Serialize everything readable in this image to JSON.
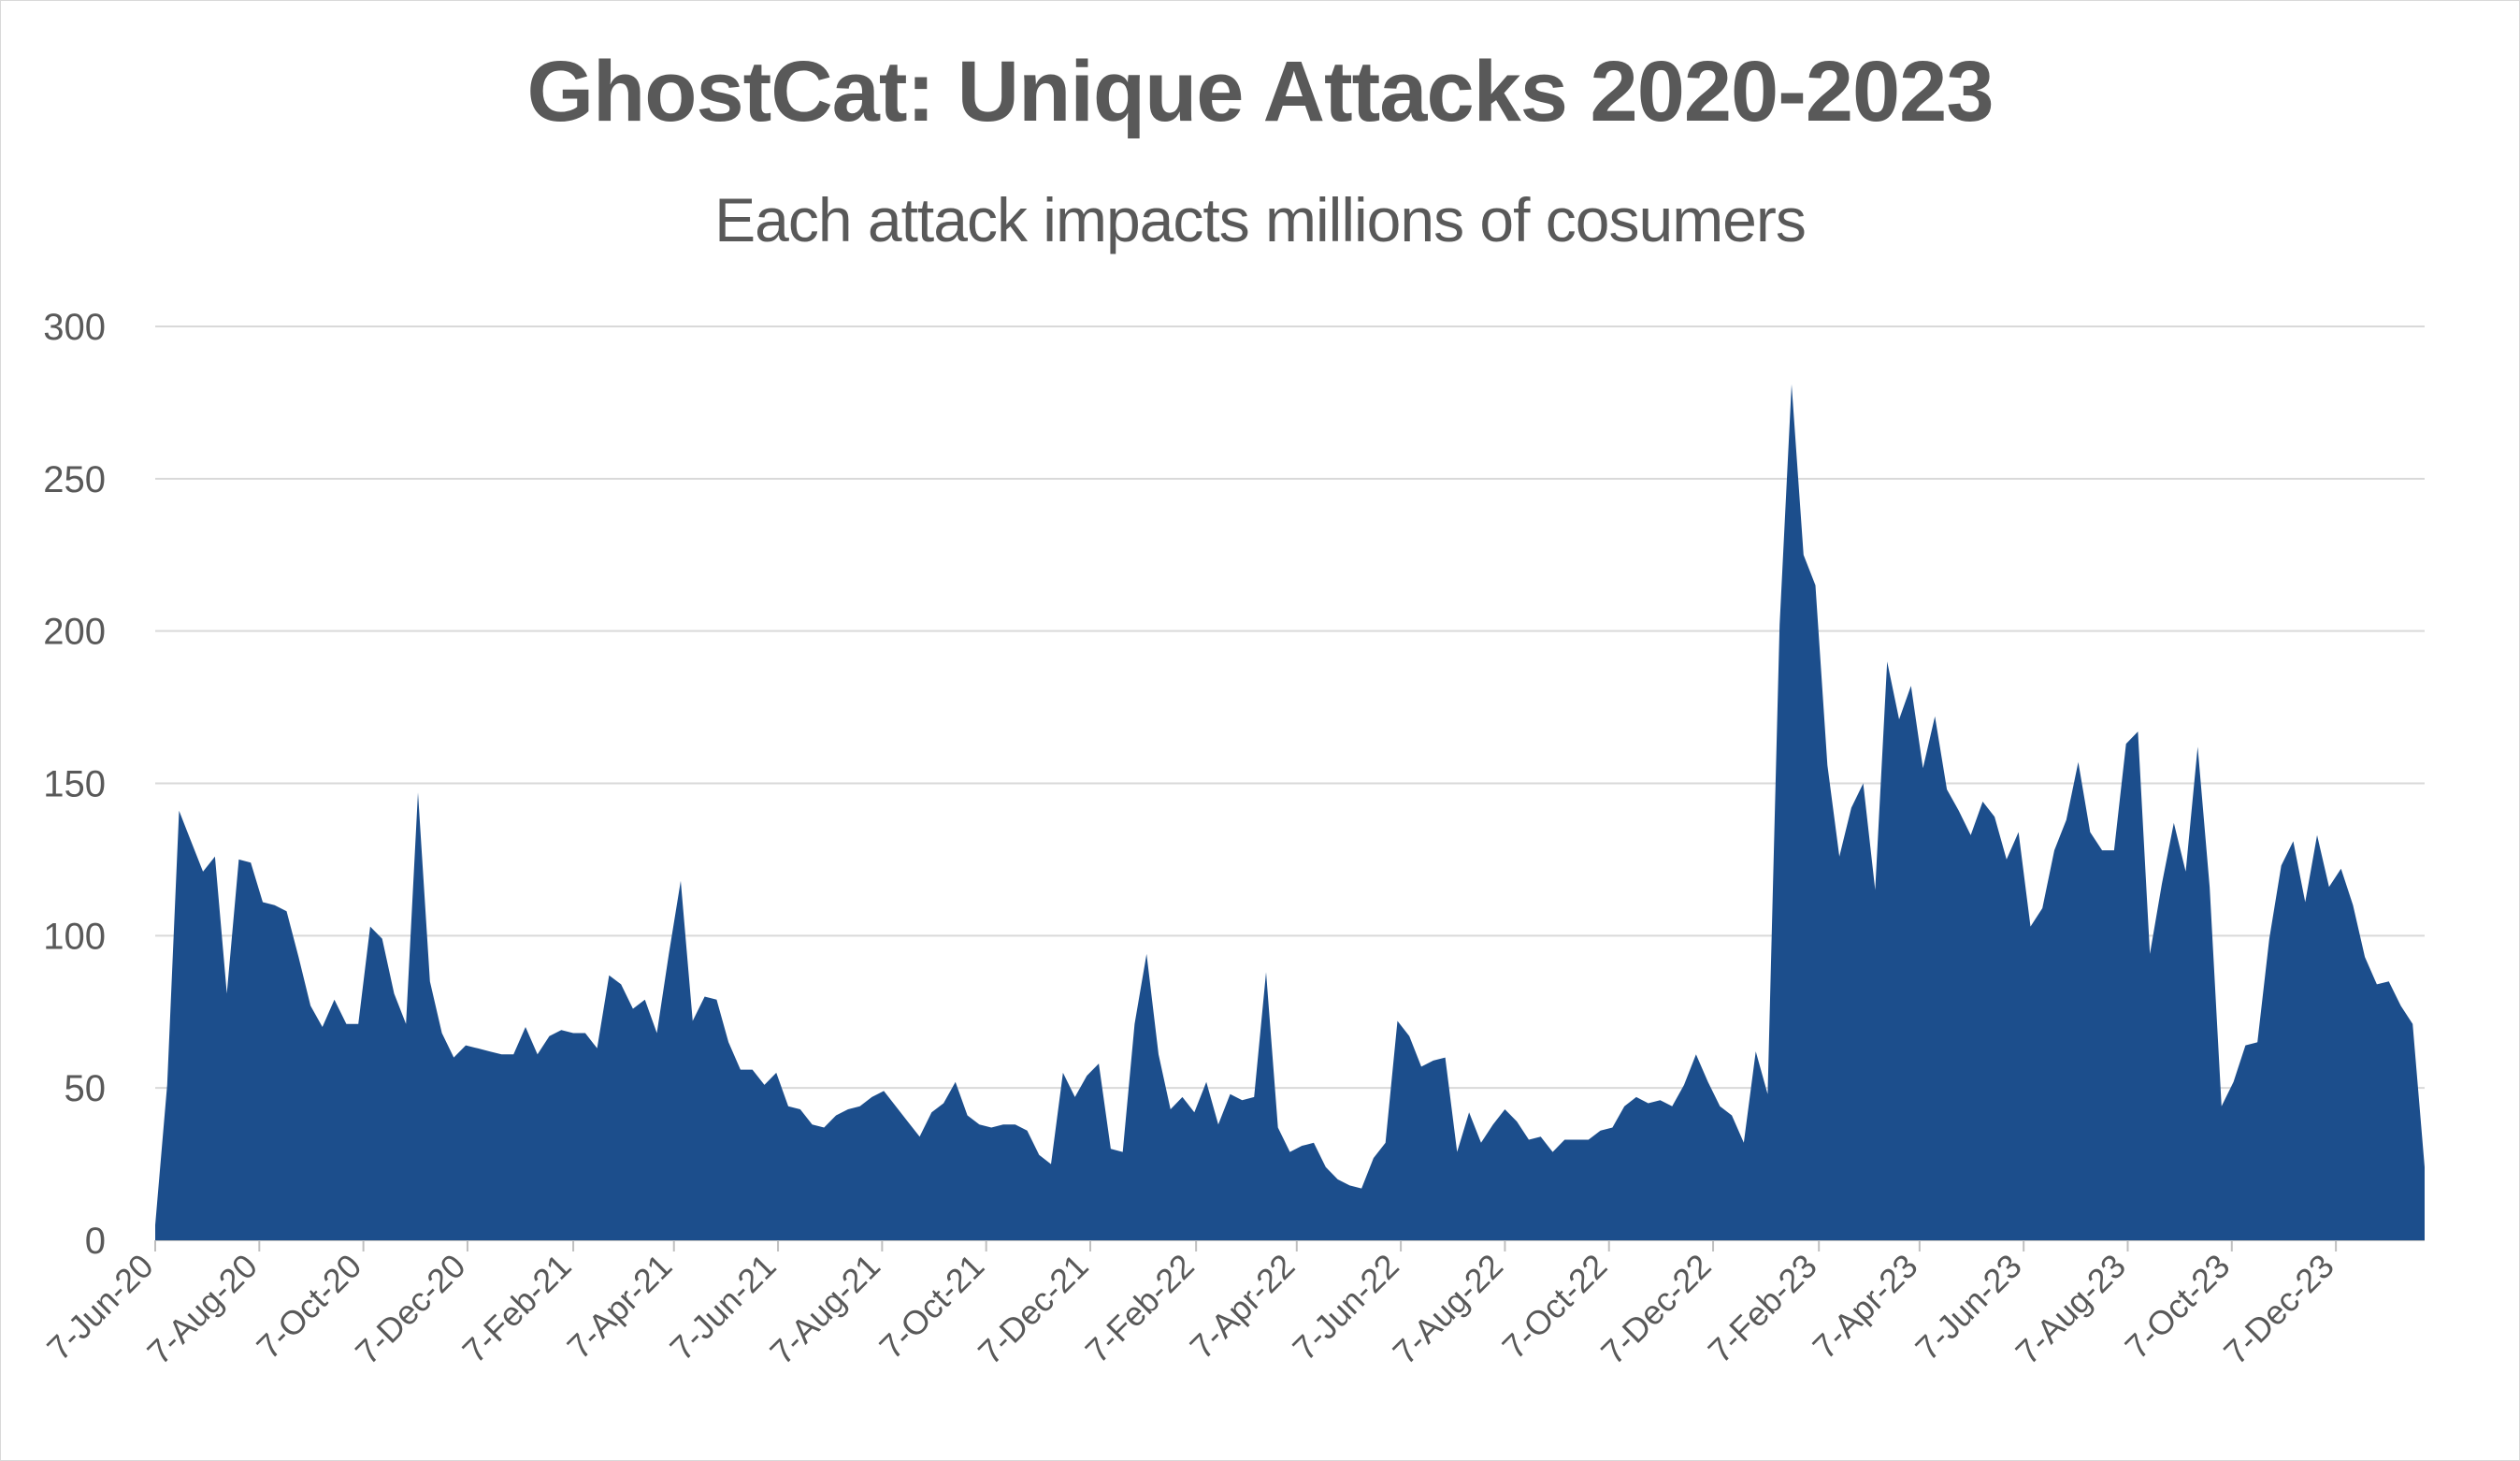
{
  "chart_data": {
    "type": "area",
    "title": "GhostCat: Unique Attacks 2020-2023",
    "subtitle": "Each attack impacts millions of cosumers",
    "xlabel": "",
    "ylabel": "",
    "ylim": [
      0,
      300
    ],
    "yticks": [
      "0",
      "50",
      "100",
      "150",
      "200",
      "250",
      "300"
    ],
    "xlim": [
      "2020-06-07",
      "2024-01-28"
    ],
    "xticks": [
      {
        "date": "2020-06-07",
        "label": "7-Jun-20"
      },
      {
        "date": "2020-08-07",
        "label": "7-Aug-20"
      },
      {
        "date": "2020-10-07",
        "label": "7-Oct-20"
      },
      {
        "date": "2020-12-07",
        "label": "7-Dec-20"
      },
      {
        "date": "2021-02-07",
        "label": "7-Feb-21"
      },
      {
        "date": "2021-04-07",
        "label": "7-Apr-21"
      },
      {
        "date": "2021-06-07",
        "label": "7-Jun-21"
      },
      {
        "date": "2021-08-07",
        "label": "7-Aug-21"
      },
      {
        "date": "2021-10-07",
        "label": "7-Oct-21"
      },
      {
        "date": "2021-12-07",
        "label": "7-Dec-21"
      },
      {
        "date": "2022-02-07",
        "label": "7-Feb-22"
      },
      {
        "date": "2022-04-07",
        "label": "7-Apr-22"
      },
      {
        "date": "2022-06-07",
        "label": "7-Jun-22"
      },
      {
        "date": "2022-08-07",
        "label": "7-Aug-22"
      },
      {
        "date": "2022-10-07",
        "label": "7-Oct-22"
      },
      {
        "date": "2022-12-07",
        "label": "7-Dec-22"
      },
      {
        "date": "2023-02-07",
        "label": "7-Feb-23"
      },
      {
        "date": "2023-04-07",
        "label": "7-Apr-23"
      },
      {
        "date": "2023-06-07",
        "label": "7-Jun-23"
      },
      {
        "date": "2023-08-07",
        "label": "7-Aug-23"
      },
      {
        "date": "2023-10-07",
        "label": "7-Oct-23"
      },
      {
        "date": "2023-12-07",
        "label": "7-Dec-23"
      }
    ],
    "grid": true,
    "legend": "none",
    "color": "#1c4e8c",
    "series": [
      {
        "x": [
          "2020-06-07",
          "2020-06-14",
          "2020-06-21",
          "2020-06-28",
          "2020-07-05",
          "2020-07-12",
          "2020-07-19",
          "2020-07-26",
          "2020-08-02",
          "2020-08-09",
          "2020-08-16",
          "2020-08-23",
          "2020-08-30",
          "2020-09-06",
          "2020-09-13",
          "2020-09-20",
          "2020-09-27",
          "2020-10-04",
          "2020-10-11",
          "2020-10-18",
          "2020-10-25",
          "2020-11-01",
          "2020-11-08",
          "2020-11-15",
          "2020-11-22",
          "2020-11-29",
          "2020-12-06",
          "2020-12-13",
          "2020-12-20",
          "2020-12-27",
          "2021-01-03",
          "2021-01-10",
          "2021-01-17",
          "2021-01-24",
          "2021-01-31",
          "2021-02-07",
          "2021-02-14",
          "2021-02-21",
          "2021-02-28",
          "2021-03-07",
          "2021-03-14",
          "2021-03-21",
          "2021-03-28",
          "2021-04-04",
          "2021-04-11",
          "2021-04-18",
          "2021-04-25",
          "2021-05-02",
          "2021-05-09",
          "2021-05-16",
          "2021-05-23",
          "2021-05-30",
          "2021-06-06",
          "2021-06-13",
          "2021-06-20",
          "2021-06-27",
          "2021-07-04",
          "2021-07-11",
          "2021-07-18",
          "2021-07-25",
          "2021-08-01",
          "2021-08-08",
          "2021-08-15",
          "2021-08-22",
          "2021-08-29",
          "2021-09-05",
          "2021-09-12",
          "2021-09-19",
          "2021-09-26",
          "2021-10-03",
          "2021-10-10",
          "2021-10-17",
          "2021-10-24",
          "2021-10-31",
          "2021-11-07",
          "2021-11-14",
          "2021-11-21",
          "2021-11-28",
          "2021-12-05",
          "2021-12-12",
          "2021-12-19",
          "2021-12-26",
          "2022-01-02",
          "2022-01-09",
          "2022-01-16",
          "2022-01-23",
          "2022-01-30",
          "2022-02-06",
          "2022-02-13",
          "2022-02-20",
          "2022-02-27",
          "2022-03-06",
          "2022-03-13",
          "2022-03-20",
          "2022-03-27",
          "2022-04-03",
          "2022-04-10",
          "2022-04-17",
          "2022-04-24",
          "2022-05-01",
          "2022-05-08",
          "2022-05-15",
          "2022-05-22",
          "2022-05-29",
          "2022-06-05",
          "2022-06-12",
          "2022-06-19",
          "2022-06-26",
          "2022-07-03",
          "2022-07-10",
          "2022-07-17",
          "2022-07-24",
          "2022-07-31",
          "2022-08-07",
          "2022-08-14",
          "2022-08-21",
          "2022-08-28",
          "2022-09-04",
          "2022-09-11",
          "2022-09-18",
          "2022-09-25",
          "2022-10-02",
          "2022-10-09",
          "2022-10-16",
          "2022-10-23",
          "2022-10-30",
          "2022-11-06",
          "2022-11-13",
          "2022-11-20",
          "2022-11-27",
          "2022-12-04",
          "2022-12-11",
          "2022-12-18",
          "2022-12-25",
          "2023-01-01",
          "2023-01-08",
          "2023-01-15",
          "2023-01-22",
          "2023-01-29",
          "2023-02-05",
          "2023-02-12",
          "2023-02-19",
          "2023-02-26",
          "2023-03-05",
          "2023-03-12",
          "2023-03-19",
          "2023-03-26",
          "2023-04-02",
          "2023-04-09",
          "2023-04-16",
          "2023-04-23",
          "2023-04-30",
          "2023-05-07",
          "2023-05-14",
          "2023-05-21",
          "2023-05-28",
          "2023-06-04",
          "2023-06-11",
          "2023-06-18",
          "2023-06-25",
          "2023-07-02",
          "2023-07-09",
          "2023-07-16",
          "2023-07-23",
          "2023-07-30",
          "2023-08-06",
          "2023-08-13",
          "2023-08-20",
          "2023-08-27",
          "2023-09-03",
          "2023-09-10",
          "2023-09-17",
          "2023-09-24",
          "2023-10-01",
          "2023-10-08",
          "2023-10-15",
          "2023-10-22",
          "2023-10-29",
          "2023-11-05",
          "2023-11-12",
          "2023-11-19",
          "2023-11-26",
          "2023-12-03",
          "2023-12-10",
          "2023-12-17",
          "2023-12-24",
          "2023-12-31",
          "2024-01-07",
          "2024-01-14",
          "2024-01-21",
          "2024-01-28"
        ],
        "values": [
          5,
          51,
          141,
          131,
          121,
          126,
          81,
          125,
          124,
          111,
          110,
          108,
          93,
          77,
          70,
          79,
          71,
          71,
          103,
          99,
          81,
          71,
          147,
          85,
          68,
          60,
          64,
          63,
          62,
          61,
          61,
          70,
          61,
          67,
          69,
          68,
          68,
          63,
          87,
          84,
          76,
          79,
          68,
          94,
          118,
          72,
          80,
          79,
          65,
          56,
          56,
          51,
          55,
          44,
          43,
          38,
          37,
          41,
          43,
          44,
          47,
          49,
          44,
          39,
          34,
          42,
          45,
          52,
          41,
          38,
          37,
          38,
          38,
          36,
          28,
          25,
          55,
          47,
          54,
          58,
          30,
          29,
          71,
          94,
          61,
          43,
          47,
          42,
          52,
          38,
          48,
          46,
          47,
          88,
          37,
          29,
          31,
          32,
          24,
          20,
          18,
          17,
          27,
          32,
          72,
          67,
          57,
          59,
          60,
          29,
          42,
          32,
          38,
          43,
          39,
          33,
          34,
          29,
          33,
          33,
          33,
          36,
          37,
          44,
          47,
          45,
          46,
          44,
          51,
          61,
          52,
          44,
          41,
          32,
          62,
          48,
          202,
          281,
          225,
          215,
          156,
          126,
          142,
          150,
          115,
          190,
          171,
          182,
          155,
          172,
          148,
          141,
          133,
          144,
          139,
          125,
          134,
          103,
          109,
          128,
          138,
          157,
          134,
          128,
          128,
          163,
          167,
          94,
          117,
          137,
          121,
          162,
          116,
          44,
          52,
          64,
          65,
          99,
          123,
          131,
          111,
          133,
          116,
          122,
          110,
          93,
          84,
          85,
          77,
          71,
          24
        ]
      }
    ]
  }
}
